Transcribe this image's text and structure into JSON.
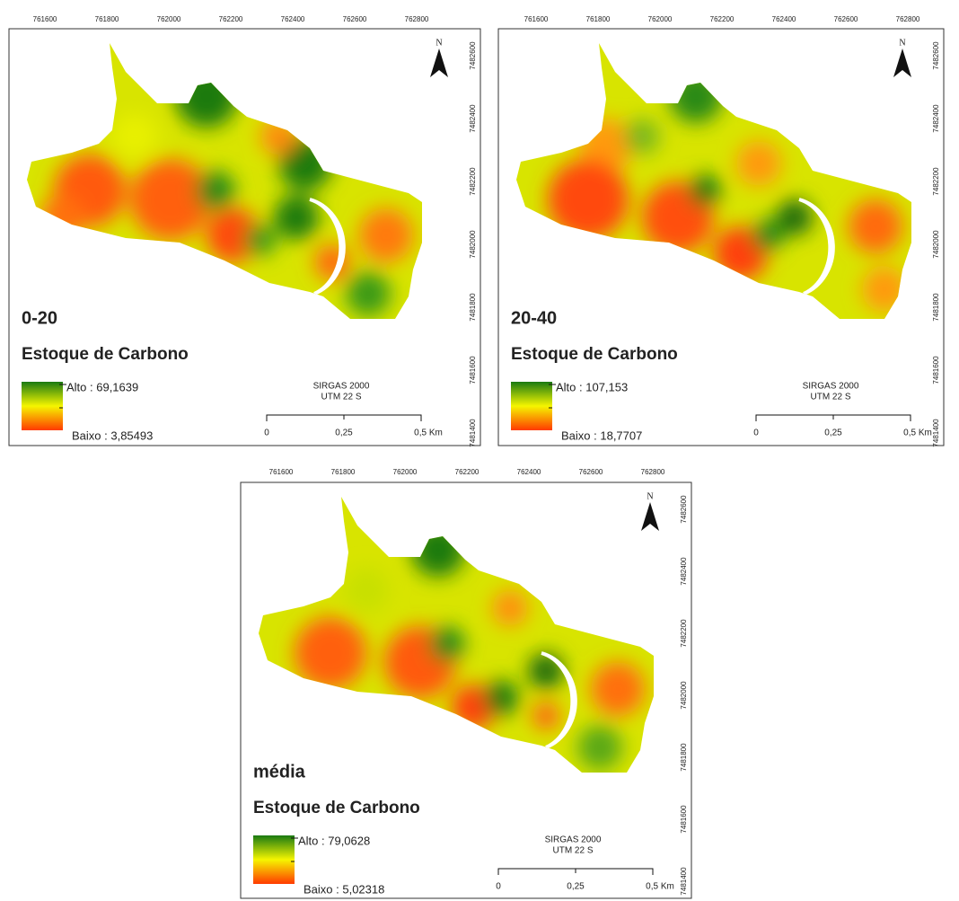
{
  "panels": [
    {
      "depth": "0-20",
      "title": "Estoque de Carbono",
      "legend": {
        "high": "Alto : 69,1639",
        "low": "Baixo : 3,85493"
      },
      "datum": "SIRGAS 2000",
      "zone": "UTM 22 S",
      "scale": [
        "0",
        "0,25",
        "0,5 Km"
      ],
      "north": "N",
      "x_ticks": [
        "761600",
        "761800",
        "762000",
        "762200",
        "762400",
        "762600",
        "762800"
      ],
      "y_ticks": [
        "7482600",
        "7482400",
        "7482200",
        "7482000",
        "7481800",
        "7481600",
        "7481400"
      ]
    },
    {
      "depth": "20-40",
      "title": "Estoque de Carbono",
      "legend": {
        "high": "Alto : 107,153",
        "low": "Baixo : 18,7707"
      },
      "datum": "SIRGAS 2000",
      "zone": "UTM 22 S",
      "scale": [
        "0",
        "0,25",
        "0,5 Km"
      ],
      "north": "N",
      "x_ticks": [
        "761600",
        "761800",
        "762000",
        "762200",
        "762400",
        "762600",
        "762800"
      ],
      "y_ticks": [
        "7482600",
        "7482400",
        "7482200",
        "7482000",
        "7481800",
        "7481600",
        "7481400"
      ]
    },
    {
      "depth": "média",
      "title": "Estoque de Carbono",
      "legend": {
        "high": "Alto : 79,0628",
        "low": "Baixo : 5,02318"
      },
      "datum": "SIRGAS 2000",
      "zone": "UTM 22 S",
      "scale": [
        "0",
        "0,25",
        "0,5 Km"
      ],
      "north": "N",
      "x_ticks": [
        "761600",
        "761800",
        "762000",
        "762200",
        "762400",
        "762600",
        "762800"
      ],
      "y_ticks": [
        "7482600",
        "7482400",
        "7482200",
        "7482000",
        "7481800",
        "7481600",
        "7481400"
      ]
    }
  ]
}
